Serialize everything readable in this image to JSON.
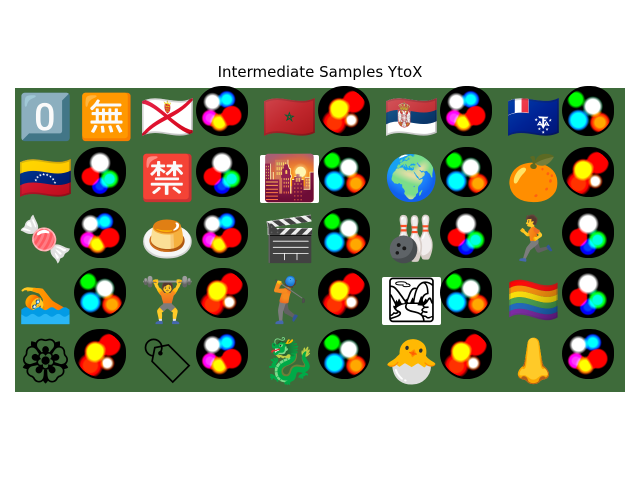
{
  "title": "Intermediate Samples YtoX",
  "grid": {
    "rows": 5,
    "cols": 10,
    "background_color": "#3e6b3a",
    "cells": [
      {
        "kind": "clean",
        "glyph": "0️⃣",
        "name": "keycap-zero-icon"
      },
      {
        "kind": "clean",
        "glyph": "🈚",
        "name": "blue-square-symbol-icon"
      },
      {
        "kind": "clean",
        "glyph": "🇯🇪",
        "name": "flag-jersey-icon"
      },
      {
        "kind": "noise",
        "variant": "v1",
        "name": "noisy-sample"
      },
      {
        "kind": "clean",
        "glyph": "🇲🇦",
        "name": "flag-morocco-icon"
      },
      {
        "kind": "noise",
        "variant": "v3",
        "name": "noisy-sample"
      },
      {
        "kind": "clean",
        "glyph": "🇷🇸",
        "name": "flag-serbia-icon"
      },
      {
        "kind": "noise",
        "variant": "v1",
        "name": "noisy-sample"
      },
      {
        "kind": "clean",
        "glyph": "🇹🇫",
        "name": "flag-french-southern-territories-icon"
      },
      {
        "kind": "noise",
        "variant": "v2",
        "name": "noisy-sample"
      },
      {
        "kind": "clean",
        "glyph": "🇻🇪",
        "name": "flag-venezuela-icon"
      },
      {
        "kind": "noise",
        "variant": "v4",
        "name": "noisy-sample"
      },
      {
        "kind": "clean",
        "glyph": "🈲",
        "name": "prohibited-symbol-icon"
      },
      {
        "kind": "noise",
        "variant": "v4",
        "name": "noisy-sample"
      },
      {
        "kind": "clean",
        "glyph": "🌇",
        "name": "sunset-city-icon",
        "framed": true
      },
      {
        "kind": "noise",
        "variant": "v2",
        "name": "noisy-sample"
      },
      {
        "kind": "clean",
        "glyph": "🌍",
        "name": "globe-africa-europe-icon"
      },
      {
        "kind": "noise",
        "variant": "v2",
        "name": "noisy-sample"
      },
      {
        "kind": "clean",
        "glyph": "🍊",
        "name": "tangerine-icon"
      },
      {
        "kind": "noise",
        "variant": "v3",
        "name": "noisy-sample"
      },
      {
        "kind": "clean",
        "glyph": "🍬",
        "name": "candy-icon"
      },
      {
        "kind": "noise",
        "variant": "v1",
        "name": "noisy-sample"
      },
      {
        "kind": "clean",
        "glyph": "🍮",
        "name": "custard-icon"
      },
      {
        "kind": "noise",
        "variant": "v1",
        "name": "noisy-sample"
      },
      {
        "kind": "clean",
        "glyph": "🎬",
        "name": "clapper-board-icon"
      },
      {
        "kind": "noise",
        "variant": "v2",
        "name": "noisy-sample"
      },
      {
        "kind": "clean",
        "glyph": "🎳",
        "name": "bowling-icon"
      },
      {
        "kind": "noise",
        "variant": "v4",
        "name": "noisy-sample"
      },
      {
        "kind": "clean",
        "glyph": "🏃",
        "name": "person-running-icon"
      },
      {
        "kind": "noise",
        "variant": "v4",
        "name": "noisy-sample"
      },
      {
        "kind": "clean",
        "glyph": "🏊",
        "name": "person-swimming-icon"
      },
      {
        "kind": "noise",
        "variant": "v2",
        "name": "noisy-sample"
      },
      {
        "kind": "clean",
        "glyph": "🏋",
        "name": "person-lifting-weights-icon"
      },
      {
        "kind": "noise",
        "variant": "v3",
        "name": "noisy-sample"
      },
      {
        "kind": "clean",
        "glyph": "🏌",
        "name": "person-golfing-icon"
      },
      {
        "kind": "noise",
        "variant": "v3",
        "name": "noisy-sample"
      },
      {
        "kind": "clean",
        "glyph": "🏞",
        "name": "national-park-icon",
        "framed": true
      },
      {
        "kind": "noise",
        "variant": "v2",
        "name": "noisy-sample"
      },
      {
        "kind": "clean",
        "glyph": "🏳️‍🌈",
        "name": "rainbow-flag-icon"
      },
      {
        "kind": "noise",
        "variant": "v4",
        "name": "noisy-sample"
      },
      {
        "kind": "clean",
        "glyph": "🏵",
        "name": "rosette-icon"
      },
      {
        "kind": "noise",
        "variant": "v3",
        "name": "noisy-sample"
      },
      {
        "kind": "clean",
        "glyph": "🏷",
        "name": "label-tag-icon"
      },
      {
        "kind": "noise",
        "variant": "v1",
        "name": "noisy-sample"
      },
      {
        "kind": "clean",
        "glyph": "🐉",
        "name": "dragon-icon"
      },
      {
        "kind": "noise",
        "variant": "v2",
        "name": "noisy-sample"
      },
      {
        "kind": "clean",
        "glyph": "🐣",
        "name": "hatching-chick-icon"
      },
      {
        "kind": "noise",
        "variant": "v3",
        "name": "noisy-sample"
      },
      {
        "kind": "clean",
        "glyph": "👃",
        "name": "nose-icon"
      },
      {
        "kind": "noise",
        "variant": "v1",
        "name": "noisy-sample"
      }
    ]
  }
}
